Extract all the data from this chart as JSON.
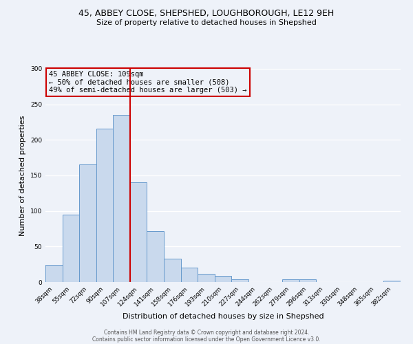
{
  "title_line1": "45, ABBEY CLOSE, SHEPSHED, LOUGHBOROUGH, LE12 9EH",
  "title_line2": "Size of property relative to detached houses in Shepshed",
  "xlabel": "Distribution of detached houses by size in Shepshed",
  "ylabel": "Number of detached properties",
  "bar_labels": [
    "38sqm",
    "55sqm",
    "72sqm",
    "90sqm",
    "107sqm",
    "124sqm",
    "141sqm",
    "158sqm",
    "176sqm",
    "193sqm",
    "210sqm",
    "227sqm",
    "244sqm",
    "262sqm",
    "279sqm",
    "296sqm",
    "313sqm",
    "330sqm",
    "348sqm",
    "365sqm",
    "382sqm"
  ],
  "bar_values": [
    24,
    95,
    165,
    216,
    235,
    140,
    72,
    33,
    20,
    12,
    9,
    4,
    0,
    0,
    4,
    4,
    0,
    0,
    0,
    0,
    2
  ],
  "bar_color": "#c9d9ed",
  "bar_edgecolor": "#6699cc",
  "vline_after_index": 4,
  "vline_color": "#cc0000",
  "annotation_title": "45 ABBEY CLOSE: 109sqm",
  "annotation_line1": "← 50% of detached houses are smaller (508)",
  "annotation_line2": "49% of semi-detached houses are larger (503) →",
  "annotation_box_edgecolor": "#cc0000",
  "ylim": [
    0,
    300
  ],
  "yticks": [
    0,
    50,
    100,
    150,
    200,
    250,
    300
  ],
  "footer_line1": "Contains HM Land Registry data © Crown copyright and database right 2024.",
  "footer_line2": "Contains public sector information licensed under the Open Government Licence v3.0.",
  "bg_color": "#eef2f9",
  "grid_color": "#ffffff",
  "title_fontsize": 9,
  "subtitle_fontsize": 8,
  "ylabel_fontsize": 8,
  "xlabel_fontsize": 8,
  "tick_fontsize": 6.5,
  "ann_fontsize": 7.5,
  "footer_fontsize": 5.5
}
